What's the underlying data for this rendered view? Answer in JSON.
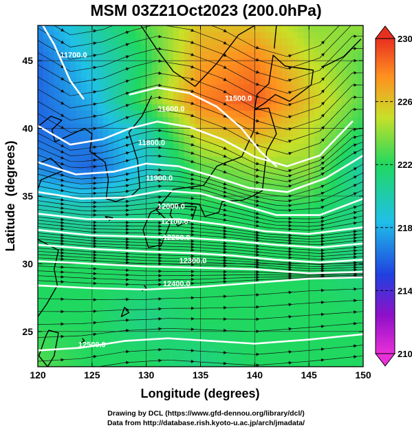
{
  "title": "MSM 03Z21Oct2023 (200.0hPa)",
  "credits": {
    "line1": "Drawing by DCL (https://www.gfd-dennou.org/library/dcl/)",
    "line2": "Data from http://database.rish.kyoto-u.ac.jp/arch/jmadata/"
  },
  "chart_data": {
    "type": "heatmap",
    "title": "MSM 03Z21Oct2023 (200.0hPa)",
    "xlabel": "Longitude (degrees)",
    "ylabel": "Latitude  (degrees)",
    "xlim": [
      120,
      150
    ],
    "ylim": [
      22.4,
      47.6
    ],
    "xticks": [
      120,
      125,
      130,
      135,
      140,
      145,
      150
    ],
    "yticks": [
      25,
      30,
      35,
      40,
      45
    ],
    "colorbar": {
      "min": 210,
      "max": 230,
      "ticks": [
        210,
        214,
        218,
        222,
        226,
        230
      ],
      "colors": [
        "#e830d8",
        "#9010c8",
        "#2040e0",
        "#20c0e8",
        "#20d860",
        "#c8e028",
        "#ff9020",
        "#e83020"
      ]
    },
    "temperature_field_K": {
      "lon": [
        120,
        125,
        130,
        135,
        140,
        145,
        150
      ],
      "lat": [
        47.6,
        45,
        42,
        40,
        37,
        34,
        30,
        26,
        22.4
      ],
      "values": [
        [
          217,
          220,
          223,
          226,
          226,
          224,
          224
        ],
        [
          216,
          219,
          222,
          227,
          228,
          225,
          223
        ],
        [
          216,
          218,
          223,
          228,
          229,
          226,
          223
        ],
        [
          216,
          217,
          220,
          226,
          227,
          225,
          222
        ],
        [
          217,
          216,
          219,
          223,
          224,
          224,
          220
        ],
        [
          220,
          220,
          221,
          222,
          222,
          222,
          221
        ],
        [
          222,
          222,
          222,
          222,
          222,
          222,
          221
        ],
        [
          222,
          222,
          221,
          222,
          222,
          222,
          222
        ],
        [
          223,
          222,
          222,
          221,
          222,
          222,
          222
        ]
      ]
    },
    "contours": [
      {
        "label": "11700.0",
        "points": [
          [
            119.8,
            48.5
          ],
          [
            121.5,
            46.2
          ],
          [
            123,
            43.5
          ],
          [
            124.2,
            42.2
          ]
        ],
        "label_at": [
          123.3,
          45.4
        ]
      },
      {
        "label": "11500.0",
        "points": [
          [
            128.5,
            42.5
          ],
          [
            131,
            43
          ],
          [
            134,
            42.6
          ],
          [
            136.5,
            41.6
          ],
          [
            138.8,
            40
          ],
          [
            140.5,
            38.3
          ],
          [
            142,
            37.2
          ]
        ],
        "label_at": [
          138.5,
          42.2
        ]
      },
      {
        "label": "11600.0",
        "points": [
          [
            120,
            40.2
          ],
          [
            123,
            38.8
          ],
          [
            126,
            39.2
          ],
          [
            128.5,
            40
          ],
          [
            131,
            40.5
          ],
          [
            134,
            40.1
          ],
          [
            137,
            39.2
          ],
          [
            140,
            37.9
          ],
          [
            143,
            37.2
          ],
          [
            146,
            38
          ],
          [
            149,
            40.5
          ]
        ],
        "label_at": [
          132.3,
          41.4
        ]
      },
      {
        "label": "11800.0",
        "points": [
          [
            120,
            37.5
          ],
          [
            123.5,
            36.6
          ],
          [
            127,
            36.8
          ],
          [
            130,
            37.4
          ],
          [
            133,
            37.2
          ],
          [
            136,
            36.5
          ],
          [
            139.5,
            35.6
          ],
          [
            143,
            35.3
          ],
          [
            146.5,
            36.3
          ],
          [
            150,
            38
          ]
        ],
        "label_at": [
          130.5,
          38.9
        ]
      },
      {
        "label": "11900.0",
        "points": [
          [
            120,
            35.3
          ],
          [
            124,
            34.8
          ],
          [
            128,
            34.9
          ],
          [
            131.5,
            35.4
          ],
          [
            135,
            35.2
          ],
          [
            138.5,
            34.4
          ],
          [
            142,
            33.6
          ],
          [
            146,
            33.6
          ],
          [
            150,
            34.8
          ]
        ],
        "label_at": [
          131.2,
          36.3
        ]
      },
      {
        "label": "12000.0",
        "points": [
          [
            120,
            33.7
          ],
          [
            124.5,
            33.3
          ],
          [
            129,
            33.3
          ],
          [
            133,
            33.3
          ],
          [
            137,
            32.9
          ],
          [
            141,
            32.4
          ],
          [
            145,
            32.2
          ],
          [
            150,
            32.7
          ]
        ],
        "label_at": [
          132.3,
          34.2
        ]
      },
      {
        "label": "12100.0",
        "points": [
          [
            120,
            32.5
          ],
          [
            125,
            32.1
          ],
          [
            130,
            32
          ],
          [
            134,
            31.9
          ],
          [
            138,
            31.7
          ],
          [
            142,
            31.4
          ],
          [
            146,
            31.2
          ],
          [
            150,
            31.5
          ]
        ],
        "label_at": [
          132.6,
          33.1
        ]
      },
      {
        "label": "12200.0",
        "points": [
          [
            120,
            31.4
          ],
          [
            125,
            31.1
          ],
          [
            130,
            30.9
          ],
          [
            134,
            30.8
          ],
          [
            138,
            30.6
          ],
          [
            142,
            30.3
          ],
          [
            146,
            30.1
          ],
          [
            150,
            30.3
          ]
        ],
        "label_at": [
          132.8,
          31.9
        ]
      },
      {
        "label": "12300.0",
        "points": [
          [
            120,
            30.2
          ],
          [
            125,
            30
          ],
          [
            130,
            29.8
          ],
          [
            135,
            29.7
          ],
          [
            140,
            29.6
          ],
          [
            145,
            29.3
          ],
          [
            150,
            29.4
          ]
        ],
        "label_at": [
          134.3,
          30.2
        ]
      },
      {
        "label": "12400.0",
        "points": [
          [
            120,
            28.4
          ],
          [
            125,
            28.2
          ],
          [
            130,
            28.1
          ],
          [
            135,
            28.3
          ],
          [
            140,
            28.6
          ],
          [
            145,
            28.9
          ],
          [
            150,
            29
          ]
        ],
        "label_at": [
          132.8,
          28.5
        ]
      },
      {
        "label": "12500.0",
        "points": [
          [
            120,
            23.6
          ],
          [
            124,
            23.8
          ],
          [
            128,
            24.3
          ],
          [
            132,
            24.5
          ],
          [
            136,
            24.3
          ],
          [
            140,
            24.1
          ],
          [
            145,
            24.4
          ],
          [
            150,
            24.8
          ]
        ],
        "label_at": [
          125,
          24
        ]
      }
    ]
  }
}
